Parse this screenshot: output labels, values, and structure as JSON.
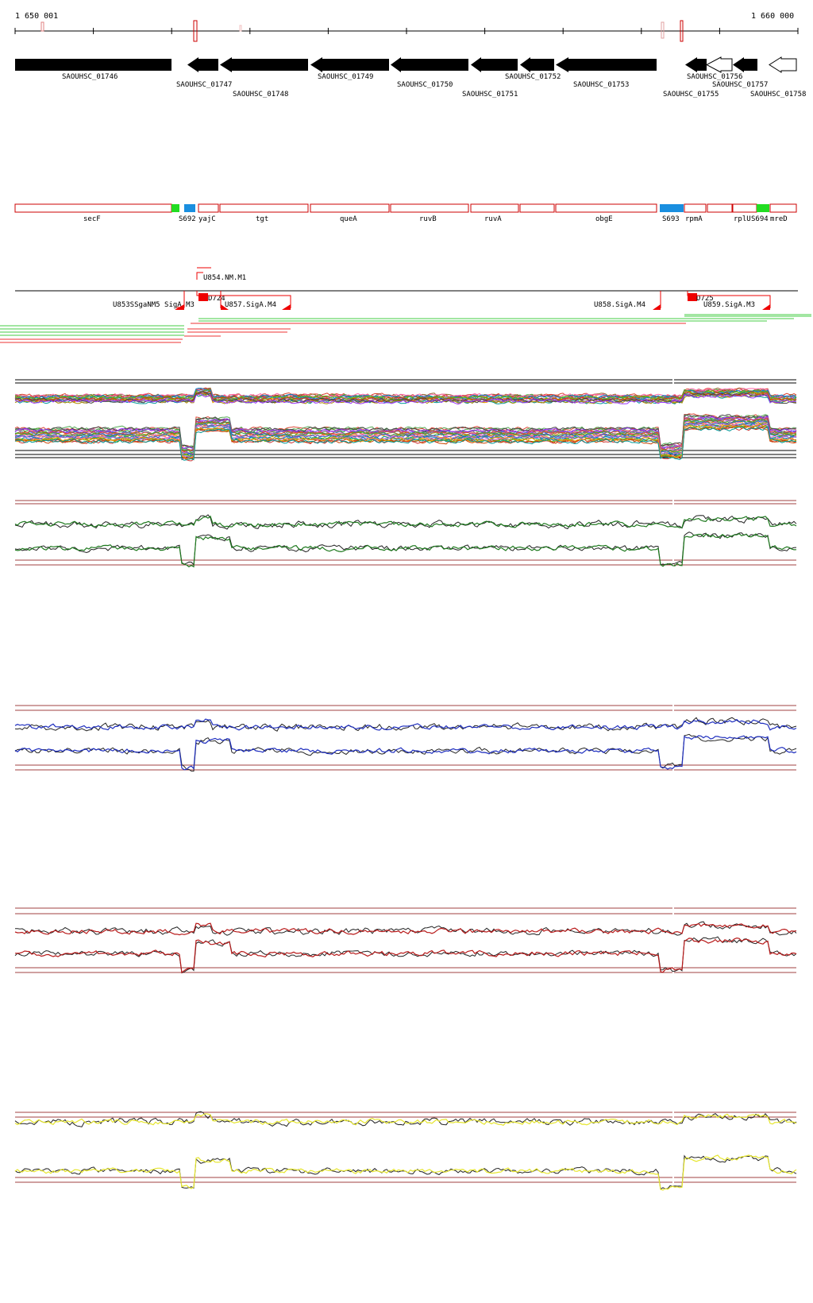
{
  "ruler": {
    "start_label": "1 650 001",
    "end_label": "1 660 000"
  },
  "genes": [
    {
      "name": "SAOUHSC_01746",
      "strand": "+",
      "fill": "black"
    },
    {
      "name": "SAOUHSC_01747",
      "strand": "-",
      "fill": "black"
    },
    {
      "name": "SAOUHSC_01748",
      "strand": "-",
      "fill": "black"
    },
    {
      "name": "SAOUHSC_01749",
      "strand": "-",
      "fill": "black"
    },
    {
      "name": "SAOUHSC_01750",
      "strand": "-",
      "fill": "black"
    },
    {
      "name": "SAOUHSC_01751",
      "strand": "-",
      "fill": "black"
    },
    {
      "name": "SAOUHSC_01752",
      "strand": "-",
      "fill": "black"
    },
    {
      "name": "SAOUHSC_01753",
      "strand": "-",
      "fill": "black"
    },
    {
      "name": "SAOUHSC_01755",
      "strand": "-",
      "fill": "black"
    },
    {
      "name": "SAOUHSC_01756",
      "strand": "-",
      "fill": "white"
    },
    {
      "name": "SAOUHSC_01757",
      "strand": "-",
      "fill": "black"
    },
    {
      "name": "SAOUHSC_01758",
      "strand": "-",
      "fill": "white"
    }
  ],
  "annotations": [
    {
      "label": "secF",
      "kind": "gene"
    },
    {
      "label": "S692",
      "kind": "feature-blue"
    },
    {
      "label": "yajC",
      "kind": "gene"
    },
    {
      "label": "tgt",
      "kind": "gene"
    },
    {
      "label": "queA",
      "kind": "gene"
    },
    {
      "label": "ruvB",
      "kind": "gene"
    },
    {
      "label": "ruvA",
      "kind": "gene"
    },
    {
      "label": "obgE",
      "kind": "gene"
    },
    {
      "label": "S693",
      "kind": "feature-blue"
    },
    {
      "label": "rpmA",
      "kind": "gene"
    },
    {
      "label": "rplU",
      "kind": "gene"
    },
    {
      "label": "S694",
      "kind": "feature-green"
    },
    {
      "label": "mreD",
      "kind": "gene"
    }
  ],
  "transcripts": [
    {
      "label": "U854.NM.M1"
    },
    {
      "label": "U853SSgaNM5 SigA.M3"
    },
    {
      "label": "D724"
    },
    {
      "label": "U857.SigA.M4"
    },
    {
      "label": "U858.SigA.M4"
    },
    {
      "label": "D725"
    },
    {
      "label": "U859.SigA.M3"
    }
  ],
  "colors": {
    "gene_fill": "#000000",
    "annotation_outline": "#cc0000",
    "feature_blue": "#1a8fe0",
    "feature_green": "#22dd22",
    "promoter_red": "#ee0000",
    "track_green": "#1f7a1f",
    "track_blue": "#1f2fbf",
    "track_red": "#b81a1a",
    "track_yellow": "#e6e62e",
    "threshold_line": "#a04040"
  },
  "panels": [
    {
      "id": "all-conditions",
      "style": "multi-color overlay"
    },
    {
      "id": "green",
      "color": "green"
    },
    {
      "id": "blue",
      "color": "blue"
    },
    {
      "id": "red",
      "color": "red"
    },
    {
      "id": "yellow",
      "color": "yellow"
    }
  ]
}
